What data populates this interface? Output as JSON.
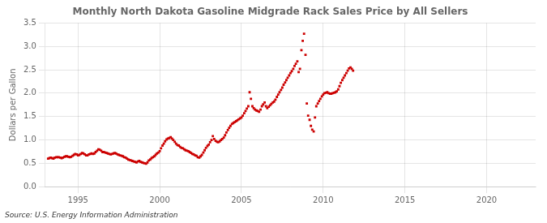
{
  "chart_data": {
    "type": "scatter",
    "title": "Monthly North Dakota Gasoline Midgrade Rack Sales Price by All Sellers",
    "ylabel": "Dollars per Gallon",
    "annotations": [
      "Source: U.S. Energy Information Administration"
    ],
    "color": "#CC0000",
    "marker": "square",
    "grid": true,
    "xlim": [
      1993.0,
      2023.0
    ],
    "xticks": [
      1995,
      2000,
      2005,
      2010,
      2015,
      2020
    ],
    "ylim": [
      0.0,
      3.5
    ],
    "yticks": [
      {
        "value": 0.0,
        "label": "0.0"
      },
      0.5,
      {
        "value": 1.0,
        "label": "1.0"
      },
      1.5,
      {
        "value": 2.0,
        "label": "2.0"
      },
      2.5,
      {
        "value": 3.0,
        "label": "3.0"
      },
      3.5
    ],
    "x": [
      1993.17,
      1993.25,
      1993.33,
      1993.42,
      1993.5,
      1993.58,
      1993.67,
      1993.75,
      1993.83,
      1993.92,
      1994.0,
      1994.08,
      1994.17,
      1994.25,
      1994.33,
      1994.42,
      1994.5,
      1994.58,
      1994.67,
      1994.75,
      1994.83,
      1994.92,
      1995.0,
      1995.08,
      1995.17,
      1995.25,
      1995.33,
      1995.42,
      1995.5,
      1995.58,
      1995.67,
      1995.75,
      1995.83,
      1995.92,
      1996.0,
      1996.08,
      1996.17,
      1996.25,
      1996.33,
      1996.42,
      1996.5,
      1996.58,
      1996.67,
      1996.75,
      1996.83,
      1996.92,
      1997.0,
      1997.08,
      1997.17,
      1997.25,
      1997.33,
      1997.42,
      1997.5,
      1997.58,
      1997.67,
      1997.75,
      1997.83,
      1997.92,
      1998.0,
      1998.08,
      1998.17,
      1998.25,
      1998.33,
      1998.42,
      1998.5,
      1998.58,
      1998.67,
      1998.75,
      1998.83,
      1998.92,
      1999.0,
      1999.08,
      1999.17,
      1999.25,
      1999.33,
      1999.42,
      1999.5,
      1999.58,
      1999.67,
      1999.75,
      1999.83,
      1999.92,
      2000.0,
      2000.08,
      2000.17,
      2000.25,
      2000.33,
      2000.42,
      2000.5,
      2000.58,
      2000.67,
      2000.75,
      2000.83,
      2000.92,
      2001.0,
      2001.08,
      2001.17,
      2001.25,
      2001.33,
      2001.42,
      2001.5,
      2001.58,
      2001.67,
      2001.75,
      2001.83,
      2001.92,
      2002.0,
      2002.08,
      2002.17,
      2002.25,
      2002.33,
      2002.42,
      2002.5,
      2002.58,
      2002.67,
      2002.75,
      2002.83,
      2002.92,
      2003.0,
      2003.08,
      2003.17,
      2003.25,
      2003.33,
      2003.42,
      2003.5,
      2003.58,
      2003.67,
      2003.75,
      2003.83,
      2003.92,
      2004.0,
      2004.08,
      2004.17,
      2004.25,
      2004.33,
      2004.42,
      2004.5,
      2004.58,
      2004.67,
      2004.75,
      2004.83,
      2004.92,
      2005.0,
      2005.08,
      2005.17,
      2005.25,
      2005.33,
      2005.42,
      2005.5,
      2005.58,
      2005.67,
      2005.75,
      2005.83,
      2005.92,
      2006.0,
      2006.08,
      2006.17,
      2006.25,
      2006.33,
      2006.42,
      2006.5,
      2006.58,
      2006.67,
      2006.75,
      2006.83,
      2006.92,
      2007.0,
      2007.08,
      2007.17,
      2007.25,
      2007.33,
      2007.42,
      2007.5,
      2007.58,
      2007.67,
      2007.75,
      2007.83,
      2007.92,
      2008.0,
      2008.08,
      2008.17,
      2008.25,
      2008.33,
      2008.42,
      2008.5,
      2008.58,
      2008.67,
      2008.75,
      2008.83,
      2008.92,
      2009.0,
      2009.08,
      2009.17,
      2009.25,
      2009.33,
      2009.42,
      2009.5,
      2009.58,
      2009.67,
      2009.75,
      2009.83,
      2009.92,
      2010.0,
      2010.08,
      2010.17,
      2010.25,
      2010.33,
      2010.42,
      2010.5,
      2010.58,
      2010.67,
      2010.75,
      2010.83,
      2010.92,
      2011.0,
      2011.08,
      2011.17,
      2011.25,
      2011.33,
      2011.42,
      2011.5,
      2011.58,
      2011.67,
      2011.75,
      2011.83
    ],
    "values": [
      0.6,
      0.61,
      0.62,
      0.61,
      0.6,
      0.62,
      0.63,
      0.63,
      0.63,
      0.62,
      0.61,
      0.62,
      0.64,
      0.65,
      0.65,
      0.64,
      0.63,
      0.64,
      0.66,
      0.68,
      0.7,
      0.69,
      0.67,
      0.68,
      0.7,
      0.72,
      0.71,
      0.69,
      0.67,
      0.67,
      0.69,
      0.7,
      0.71,
      0.7,
      0.71,
      0.74,
      0.77,
      0.8,
      0.79,
      0.77,
      0.74,
      0.74,
      0.73,
      0.72,
      0.71,
      0.7,
      0.69,
      0.7,
      0.71,
      0.72,
      0.71,
      0.69,
      0.68,
      0.67,
      0.66,
      0.65,
      0.63,
      0.62,
      0.6,
      0.58,
      0.57,
      0.56,
      0.55,
      0.54,
      0.53,
      0.52,
      0.54,
      0.55,
      0.53,
      0.52,
      0.51,
      0.5,
      0.49,
      0.52,
      0.56,
      0.58,
      0.61,
      0.63,
      0.65,
      0.68,
      0.71,
      0.73,
      0.76,
      0.82,
      0.88,
      0.92,
      0.97,
      1.01,
      1.03,
      1.04,
      1.06,
      1.03,
      1.0,
      0.96,
      0.92,
      0.89,
      0.88,
      0.85,
      0.83,
      0.82,
      0.8,
      0.78,
      0.77,
      0.76,
      0.74,
      0.72,
      0.7,
      0.69,
      0.67,
      0.66,
      0.63,
      0.62,
      0.65,
      0.68,
      0.73,
      0.78,
      0.83,
      0.87,
      0.9,
      0.95,
      1.0,
      1.08,
      1.02,
      0.98,
      0.96,
      0.95,
      0.97,
      1.0,
      1.02,
      1.05,
      1.1,
      1.16,
      1.21,
      1.26,
      1.3,
      1.34,
      1.36,
      1.38,
      1.4,
      1.42,
      1.44,
      1.46,
      1.48,
      1.52,
      1.57,
      1.62,
      1.67,
      1.72,
      2.02,
      1.88,
      1.72,
      1.68,
      1.65,
      1.63,
      1.62,
      1.6,
      1.65,
      1.72,
      1.76,
      1.8,
      1.72,
      1.68,
      1.71,
      1.74,
      1.77,
      1.8,
      1.82,
      1.86,
      1.92,
      1.97,
      2.02,
      2.07,
      2.12,
      2.18,
      2.23,
      2.28,
      2.33,
      2.38,
      2.43,
      2.47,
      2.52,
      2.58,
      2.63,
      2.68,
      2.45,
      2.52,
      2.92,
      3.12,
      3.27,
      2.82,
      1.78,
      1.52,
      1.43,
      1.3,
      1.22,
      1.18,
      1.48,
      1.72,
      1.78,
      1.83,
      1.88,
      1.93,
      1.97,
      2.0,
      2.01,
      2.02,
      2.0,
      1.99,
      1.99,
      2.0,
      2.01,
      2.02,
      2.04,
      2.08,
      2.15,
      2.22,
      2.28,
      2.33,
      2.38,
      2.43,
      2.48,
      2.53,
      2.55,
      2.52,
      2.48
    ]
  }
}
